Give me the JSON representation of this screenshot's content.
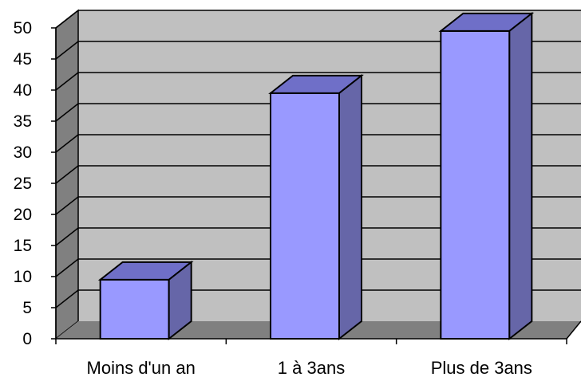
{
  "chart_data": {
    "type": "bar",
    "style": "3d-column",
    "categories": [
      "Moins d'un an",
      "1 à 3ans",
      "Plus de 3ans"
    ],
    "values": [
      9.5,
      39.5,
      49.5
    ],
    "ylim": [
      0,
      50
    ],
    "y_ticks": [
      "0",
      "5",
      "10",
      "15",
      "20",
      "25",
      "30",
      "35",
      "40",
      "45",
      "50"
    ],
    "grid": true,
    "legend": "none",
    "colors": {
      "bar_front": "#9999ff",
      "bar_top": "#6f6fc8",
      "bar_side": "#6666a8",
      "wall": "#c0c0c0",
      "side_wall": "#808080",
      "floor": "#808080"
    }
  }
}
